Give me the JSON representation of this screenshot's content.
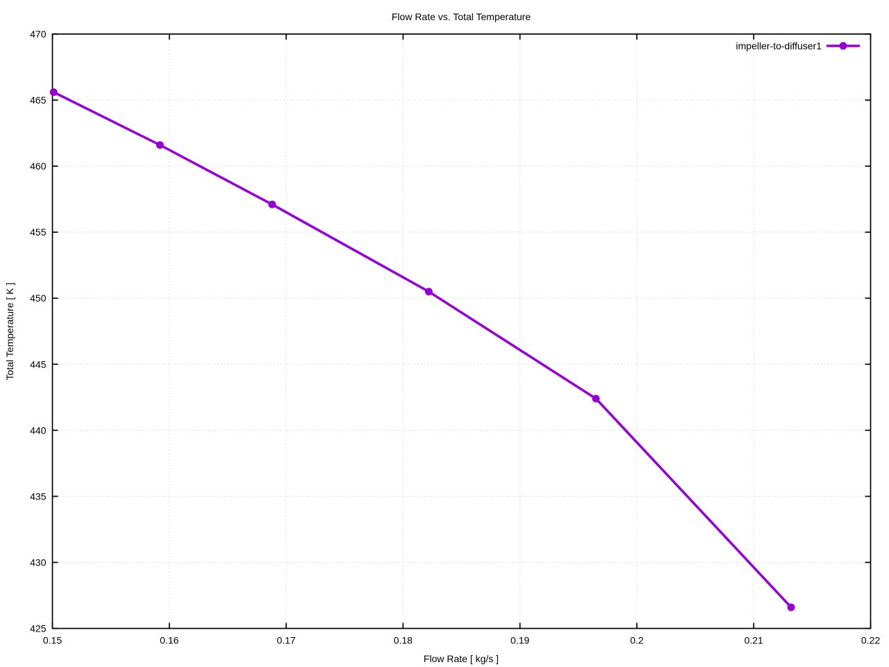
{
  "page": {
    "background": "#ffffff"
  },
  "chart_data": {
    "type": "line",
    "title": "Flow Rate vs. Total Temperature",
    "xlabel": "Flow Rate [ kg/s ]",
    "ylabel": "Total Temperature [ K ]",
    "xlim": [
      0.15,
      0.22
    ],
    "ylim": [
      425,
      470
    ],
    "grid": true,
    "x_ticks": {
      "values": [
        0.15,
        0.16,
        0.17,
        0.18,
        0.19,
        0.2,
        0.21,
        0.22
      ],
      "labels": [
        "0.15",
        "0.16",
        "0.17",
        "0.18",
        "0.19",
        "0.2",
        "0.21",
        "0.22"
      ]
    },
    "y_ticks": {
      "values": [
        425,
        430,
        435,
        440,
        445,
        450,
        455,
        460,
        465,
        470
      ],
      "labels": [
        "425",
        "430",
        "435",
        "440",
        "445",
        "450",
        "455",
        "460",
        "465",
        "470"
      ]
    },
    "legend": {
      "position": "inside-top-right",
      "entries": [
        {
          "label": "impeller-to-diffuser1",
          "color": "#9400d3",
          "marker": "filled-circle"
        }
      ]
    },
    "series": [
      {
        "name": "impeller-to-diffuser1",
        "color": "#9400d3",
        "marker": "filled-circle",
        "points": [
          [
            0.1501,
            465.6
          ],
          [
            0.1592,
            461.6
          ],
          [
            0.1688,
            457.1
          ],
          [
            0.1822,
            450.5
          ],
          [
            0.1965,
            442.4
          ],
          [
            0.2132,
            426.6
          ]
        ]
      }
    ],
    "colors": {
      "series": "#9400d3",
      "grid": "#c8c8c8",
      "axis": "#000000",
      "text": "#000000",
      "background": "#ffffff"
    }
  }
}
